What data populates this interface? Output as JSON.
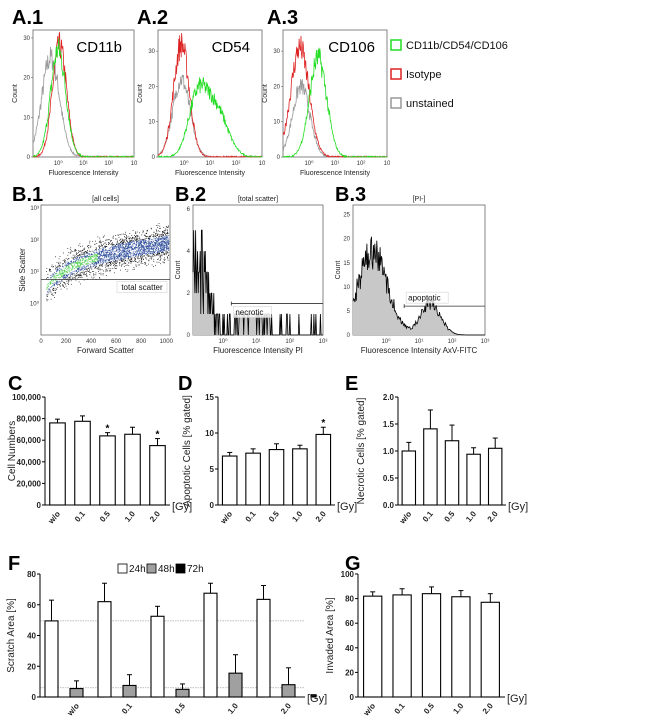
{
  "colors": {
    "stained": "#22dd22",
    "isotype": "#dd2222",
    "unstained": "#999999",
    "h48": "#a0a0a0",
    "h72": "#000000",
    "fill_hist": "#c8c8c8"
  },
  "legend_a": [
    {
      "label": "CD11b/CD54/CD106",
      "color": "#22dd22"
    },
    {
      "label": "Isotype",
      "color": "#dd2222"
    },
    {
      "label": "unstained",
      "color": "#999999"
    }
  ],
  "chart_data": [
    {
      "id": "A1",
      "panel": "A.1",
      "type": "line",
      "title": "CD11b",
      "xlabel": "Fluorescence Intensity",
      "ylabel": "Count",
      "xscale": "log",
      "xlim_log10": [
        -1,
        3
      ],
      "ylim": [
        0,
        32
      ],
      "xticks": [
        "10⁰",
        "10¹",
        "10²",
        "10"
      ],
      "yticks": [
        "0",
        "10",
        "20",
        "30"
      ],
      "series": [
        {
          "name": "unstained",
          "peaks": [
            {
              "log10_x": -0.3,
              "count": 25,
              "width": 0.35
            }
          ]
        },
        {
          "name": "Isotype",
          "peaks": [
            {
              "log10_x": 0.05,
              "count": 28,
              "width": 0.28
            }
          ]
        },
        {
          "name": "CD11b/CD54/CD106",
          "peaks": [
            {
              "log10_x": 0.0,
              "count": 27,
              "width": 0.3
            }
          ]
        }
      ]
    },
    {
      "id": "A2",
      "panel": "A.2",
      "type": "line",
      "title": "CD54",
      "xlabel": "Fluorescence Intensity",
      "ylabel": "Count",
      "xscale": "log",
      "xlim_log10": [
        -1,
        3
      ],
      "ylim": [
        0,
        36
      ],
      "xticks": [
        "10⁰",
        "10¹",
        "10²",
        "10"
      ],
      "yticks": [
        "0",
        "10",
        "20",
        "30"
      ],
      "series": [
        {
          "name": "unstained",
          "peaks": [
            {
              "log10_x": -0.1,
              "count": 22,
              "width": 0.33
            }
          ]
        },
        {
          "name": "Isotype",
          "peaks": [
            {
              "log10_x": -0.1,
              "count": 32,
              "width": 0.3
            }
          ]
        },
        {
          "name": "CD11b/CD54/CD106",
          "peaks": [
            {
              "log10_x": 0.5,
              "count": 15,
              "width": 0.35
            },
            {
              "log10_x": 1.2,
              "count": 14,
              "width": 0.45
            }
          ]
        }
      ]
    },
    {
      "id": "A3",
      "panel": "A.3",
      "type": "line",
      "title": "CD106",
      "xlabel": "Fluorescence Intensity",
      "ylabel": "Count",
      "xscale": "log",
      "xlim_log10": [
        -1,
        3
      ],
      "ylim": [
        0,
        36
      ],
      "xticks": [
        "10⁰",
        "10¹",
        "10²",
        "10"
      ],
      "yticks": [
        "0",
        "10",
        "20",
        "30"
      ],
      "series": [
        {
          "name": "unstained",
          "peaks": [
            {
              "log10_x": -0.3,
              "count": 20,
              "width": 0.33
            }
          ]
        },
        {
          "name": "Isotype",
          "peaks": [
            {
              "log10_x": -0.35,
              "count": 31,
              "width": 0.35
            }
          ]
        },
        {
          "name": "CD11b/CD54/CD106",
          "peaks": [
            {
              "log10_x": 0.35,
              "count": 28,
              "width": 0.33
            }
          ]
        }
      ]
    },
    {
      "id": "B1",
      "panel": "B.1",
      "type": "scatter",
      "title": "[all cells]",
      "xlabel": "Forward Scatter",
      "ylabel": "Side Scatter",
      "xlim": [
        0,
        1030
      ],
      "ylim_log10": [
        -1,
        3.1
      ],
      "xticks": [
        "0",
        "200",
        "400",
        "600",
        "800",
        "1000"
      ],
      "yticks": [
        "10⁰",
        "10¹",
        "10²",
        "10³"
      ],
      "gate": {
        "label": "total scatter",
        "log10_y": 0.75
      }
    },
    {
      "id": "B2",
      "panel": "B.2",
      "type": "area",
      "title": "[total scatter]",
      "xlabel": "Fluorescence Intensity PI",
      "ylabel": "Count",
      "xscale": "log",
      "xlim_log10": [
        -0.9,
        3
      ],
      "ylim": [
        0,
        6.2
      ],
      "xticks": [
        "10⁰",
        "10¹",
        "10²",
        "10³"
      ],
      "yticks": [
        "0",
        "2",
        "4",
        "6"
      ],
      "peaks": [
        {
          "log10_x": -0.8,
          "count": 3.2,
          "width": 0.35
        },
        {
          "log10_x": 0.9,
          "count": 1.1,
          "width": 0.4
        }
      ],
      "gate": {
        "label": "necrotic",
        "count": 1.5,
        "from_log10_x": 0.25
      }
    },
    {
      "id": "B3",
      "panel": "B.3",
      "type": "area",
      "title": "[PI-]",
      "xlabel": "Fluorescence Intensity AxV-FITC",
      "ylabel": "Count",
      "xscale": "log",
      "xlim_log10": [
        -1,
        3
      ],
      "ylim": [
        0,
        27
      ],
      "xticks": [
        "10⁰",
        "10¹",
        "10²",
        "10³"
      ],
      "yticks": [
        "0",
        "5",
        "10",
        "15",
        "20",
        "25"
      ],
      "peaks": [
        {
          "log10_x": -0.4,
          "count": 17,
          "width": 0.45
        },
        {
          "log10_x": 1.35,
          "count": 6.5,
          "width": 0.3
        }
      ],
      "gate": {
        "label": "apoptotic",
        "count": 6,
        "from_log10_x": 0.55
      }
    },
    {
      "id": "C",
      "panel": "C",
      "type": "bar",
      "ylabel": "Cell Numbers",
      "unit_label": "[Gy]",
      "categories": [
        "w/o",
        "0.1",
        "0.5",
        "1.0",
        "2.0"
      ],
      "ylim": [
        0,
        100000
      ],
      "yticks": [
        "0",
        "20,000",
        "40,000",
        "60,000",
        "80,000",
        "100,000"
      ],
      "values": [
        76000,
        77500,
        64000,
        65500,
        55000
      ],
      "errors": [
        3500,
        5000,
        3000,
        6500,
        6500
      ],
      "significant": [
        "",
        "",
        "*",
        "",
        "*"
      ]
    },
    {
      "id": "D",
      "panel": "D",
      "type": "bar",
      "ylabel": "Apoptotic Cells [% gated]",
      "unit_label": "[Gy]",
      "categories": [
        "w/o",
        "0.1",
        "0.5",
        "1.0",
        "2.0"
      ],
      "ylim": [
        0,
        15
      ],
      "yticks": [
        "0",
        "5",
        "10",
        "15"
      ],
      "values": [
        6.8,
        7.2,
        7.7,
        7.8,
        9.8
      ],
      "errors": [
        0.5,
        0.6,
        0.8,
        0.5,
        1.0
      ],
      "significant": [
        "",
        "",
        "",
        "",
        "*"
      ]
    },
    {
      "id": "E",
      "panel": "E",
      "type": "bar",
      "ylabel": "Necrotic Cells [% gated]",
      "unit_label": "[Gy]",
      "categories": [
        "w/o",
        "0.1",
        "0.5",
        "1.0",
        "2.0"
      ],
      "ylim": [
        0,
        2.0
      ],
      "yticks": [
        "0.0",
        "0.5",
        "1.0",
        "1.5",
        "2.0"
      ],
      "values": [
        1.0,
        1.41,
        1.19,
        0.94,
        1.05
      ],
      "errors": [
        0.16,
        0.35,
        0.29,
        0.12,
        0.19
      ],
      "significant": [
        "",
        "",
        "",
        "",
        ""
      ]
    },
    {
      "id": "F",
      "panel": "F",
      "type": "bar",
      "ylabel": "Scratch Area [%]",
      "unit_label": "[Gy]",
      "categories": [
        "w/o",
        "0.1",
        "0.5",
        "1.0",
        "2.0"
      ],
      "ylim": [
        0,
        80
      ],
      "yticks": [
        "0",
        "20",
        "40",
        "60",
        "80"
      ],
      "reference_lines": [
        49.5,
        6
      ],
      "legend": "top",
      "series": [
        {
          "name": "24h",
          "values": [
            49.5,
            62,
            52.5,
            67.5,
            63.5
          ],
          "errors": [
            13.5,
            12,
            6.5,
            6.5,
            9
          ]
        },
        {
          "name": "48h",
          "values": [
            5.5,
            7.5,
            5,
            15.5,
            8
          ],
          "errors": [
            5,
            7,
            3.5,
            12,
            11
          ]
        },
        {
          "name": "72h",
          "values": [
            1,
            0.5,
            0.8,
            0.8,
            1.5
          ],
          "errors": [
            0,
            0,
            0,
            0,
            0
          ]
        }
      ]
    },
    {
      "id": "G",
      "panel": "G",
      "type": "bar",
      "ylabel": "Invaded Area [%]",
      "unit_label": "[Gy]",
      "categories": [
        "w/o",
        "0.1",
        "0.5",
        "1.0",
        "2.0"
      ],
      "ylim": [
        0,
        100
      ],
      "yticks": [
        "0",
        "20",
        "40",
        "60",
        "80",
        "100"
      ],
      "values": [
        82,
        83,
        84,
        81.5,
        77
      ],
      "errors": [
        3.5,
        5,
        5.5,
        5,
        7
      ],
      "significant": [
        "",
        "",
        "",
        "",
        ""
      ]
    }
  ]
}
